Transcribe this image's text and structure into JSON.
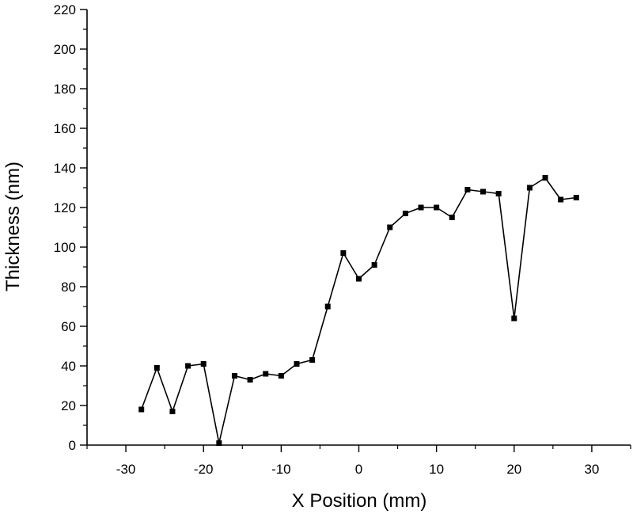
{
  "chart_data": {
    "type": "line",
    "title": "",
    "xlabel": "X Position (mm)",
    "ylabel": "Thickness (nm)",
    "xlim": [
      -35,
      35
    ],
    "ylim": [
      0,
      220
    ],
    "xticks": [
      -30,
      -20,
      -10,
      0,
      10,
      20,
      30
    ],
    "xtick_labels": [
      "-30",
      "-20",
      "-10",
      "0",
      "10",
      "20",
      "30"
    ],
    "yticks": [
      0,
      20,
      40,
      60,
      80,
      100,
      120,
      140,
      160,
      180,
      200,
      220
    ],
    "ytick_labels": [
      "0",
      "20",
      "40",
      "60",
      "80",
      "100",
      "120",
      "140",
      "160",
      "180",
      "200",
      "220"
    ],
    "grid": false,
    "legend": false,
    "line_color": "#000000",
    "marker": "square",
    "series": [
      {
        "x": [
          -28,
          -26,
          -24,
          -22,
          -20,
          -18,
          -16,
          -14,
          -12,
          -10,
          -8,
          -6,
          -4,
          -2,
          0,
          2,
          4,
          6,
          8,
          10,
          12,
          14,
          16,
          18,
          20,
          22,
          24,
          26,
          28
        ],
        "values": [
          18,
          39,
          17,
          40,
          41,
          1,
          35,
          33,
          36,
          35,
          41,
          43,
          70,
          97,
          84,
          91,
          110,
          117,
          120,
          120,
          115,
          129,
          128,
          127,
          64,
          130,
          135,
          124,
          125
        ]
      }
    ]
  }
}
